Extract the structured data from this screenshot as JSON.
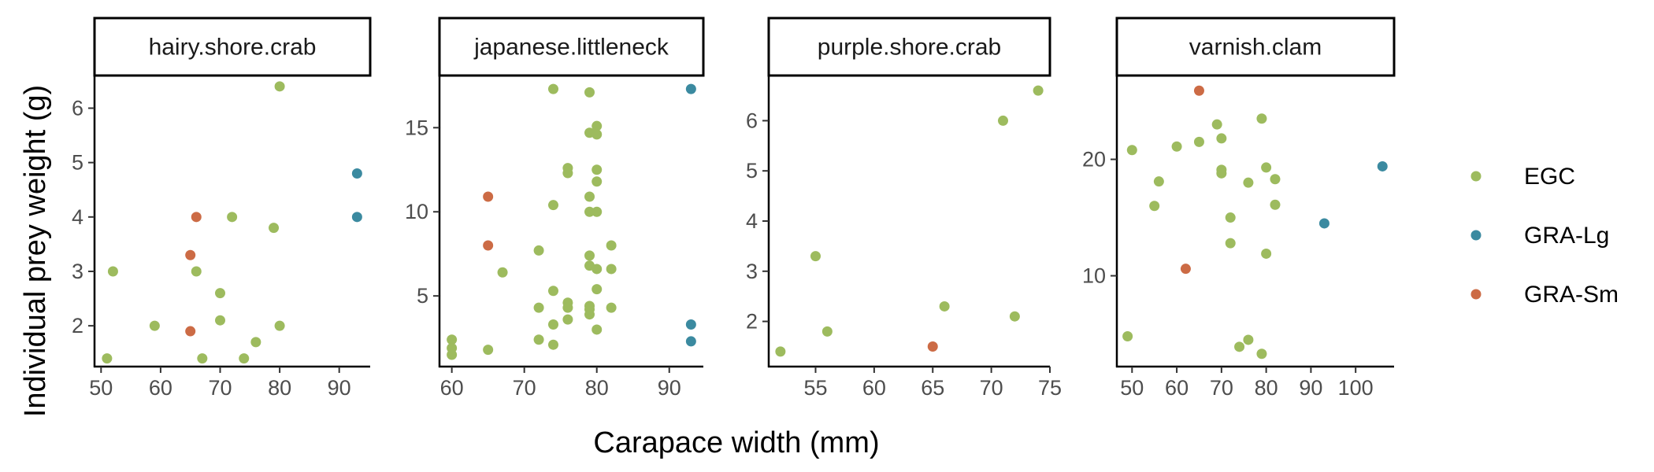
{
  "chart_data": {
    "type": "scatter",
    "xlabel": "Carapace width (mm)",
    "ylabel": "Individual prey weight (g)",
    "legend": {
      "position": "right",
      "items": [
        {
          "name": "EGC",
          "color": "#9dbb5e"
        },
        {
          "name": "GRA-Lg",
          "color": "#3b8aa0"
        },
        {
          "name": "GRA-Sm",
          "color": "#cc6b45"
        }
      ]
    },
    "panels": [
      {
        "title": "hairy.shore.crab",
        "xlim": [
          48.9,
          95.2
        ],
        "ylim": [
          1.25,
          6.6
        ],
        "xticks": [
          50,
          60,
          70,
          80,
          90
        ],
        "yticks": [
          2,
          3,
          4,
          5,
          6
        ],
        "points": [
          {
            "x": 51,
            "y": 1.4,
            "group": "EGC"
          },
          {
            "x": 52,
            "y": 3.0,
            "group": "EGC"
          },
          {
            "x": 59,
            "y": 2.0,
            "group": "EGC"
          },
          {
            "x": 66,
            "y": 3.0,
            "group": "EGC"
          },
          {
            "x": 67,
            "y": 1.4,
            "group": "EGC"
          },
          {
            "x": 70,
            "y": 2.6,
            "group": "EGC"
          },
          {
            "x": 70,
            "y": 2.1,
            "group": "EGC"
          },
          {
            "x": 72,
            "y": 4.0,
            "group": "EGC"
          },
          {
            "x": 74,
            "y": 1.4,
            "group": "EGC"
          },
          {
            "x": 76,
            "y": 1.7,
            "group": "EGC"
          },
          {
            "x": 79,
            "y": 3.8,
            "group": "EGC"
          },
          {
            "x": 80,
            "y": 6.4,
            "group": "EGC"
          },
          {
            "x": 80,
            "y": 2.0,
            "group": "EGC"
          },
          {
            "x": 93,
            "y": 4.8,
            "group": "GRA-Lg"
          },
          {
            "x": 93,
            "y": 4.0,
            "group": "GRA-Lg"
          },
          {
            "x": 65,
            "y": 3.3,
            "group": "GRA-Sm"
          },
          {
            "x": 65,
            "y": 1.9,
            "group": "GRA-Sm"
          },
          {
            "x": 66,
            "y": 4.0,
            "group": "GRA-Sm"
          }
        ]
      },
      {
        "title": "japanese.littleneck",
        "xlim": [
          58.3,
          94.7
        ],
        "ylim": [
          0.8,
          18.1
        ],
        "xticks": [
          60,
          70,
          80,
          90
        ],
        "yticks": [
          5,
          10,
          15
        ],
        "points": [
          {
            "x": 60,
            "y": 2.4,
            "group": "EGC"
          },
          {
            "x": 60,
            "y": 1.9,
            "group": "EGC"
          },
          {
            "x": 60,
            "y": 1.5,
            "group": "EGC"
          },
          {
            "x": 65,
            "y": 1.8,
            "group": "EGC"
          },
          {
            "x": 67,
            "y": 6.4,
            "group": "EGC"
          },
          {
            "x": 72,
            "y": 7.7,
            "group": "EGC"
          },
          {
            "x": 72,
            "y": 4.3,
            "group": "EGC"
          },
          {
            "x": 72,
            "y": 2.4,
            "group": "EGC"
          },
          {
            "x": 74,
            "y": 17.3,
            "group": "EGC"
          },
          {
            "x": 74,
            "y": 10.4,
            "group": "EGC"
          },
          {
            "x": 74,
            "y": 5.3,
            "group": "EGC"
          },
          {
            "x": 74,
            "y": 3.3,
            "group": "EGC"
          },
          {
            "x": 74,
            "y": 2.1,
            "group": "EGC"
          },
          {
            "x": 76,
            "y": 12.6,
            "group": "EGC"
          },
          {
            "x": 76,
            "y": 12.3,
            "group": "EGC"
          },
          {
            "x": 76,
            "y": 4.6,
            "group": "EGC"
          },
          {
            "x": 76,
            "y": 4.3,
            "group": "EGC"
          },
          {
            "x": 76,
            "y": 3.6,
            "group": "EGC"
          },
          {
            "x": 79,
            "y": 17.1,
            "group": "EGC"
          },
          {
            "x": 79,
            "y": 14.7,
            "group": "EGC"
          },
          {
            "x": 79,
            "y": 10.9,
            "group": "EGC"
          },
          {
            "x": 79,
            "y": 10.0,
            "group": "EGC"
          },
          {
            "x": 79,
            "y": 7.4,
            "group": "EGC"
          },
          {
            "x": 79,
            "y": 6.8,
            "group": "EGC"
          },
          {
            "x": 79,
            "y": 4.4,
            "group": "EGC"
          },
          {
            "x": 79,
            "y": 4.2,
            "group": "EGC"
          },
          {
            "x": 79,
            "y": 3.9,
            "group": "EGC"
          },
          {
            "x": 80,
            "y": 15.1,
            "group": "EGC"
          },
          {
            "x": 80,
            "y": 14.6,
            "group": "EGC"
          },
          {
            "x": 80,
            "y": 12.5,
            "group": "EGC"
          },
          {
            "x": 80,
            "y": 11.8,
            "group": "EGC"
          },
          {
            "x": 80,
            "y": 10.0,
            "group": "EGC"
          },
          {
            "x": 80,
            "y": 6.6,
            "group": "EGC"
          },
          {
            "x": 80,
            "y": 5.4,
            "group": "EGC"
          },
          {
            "x": 80,
            "y": 3.0,
            "group": "EGC"
          },
          {
            "x": 82,
            "y": 8.0,
            "group": "EGC"
          },
          {
            "x": 82,
            "y": 6.6,
            "group": "EGC"
          },
          {
            "x": 82,
            "y": 4.3,
            "group": "EGC"
          },
          {
            "x": 93,
            "y": 17.3,
            "group": "GRA-Lg"
          },
          {
            "x": 93,
            "y": 3.3,
            "group": "GRA-Lg"
          },
          {
            "x": 93,
            "y": 2.3,
            "group": "GRA-Lg"
          },
          {
            "x": 65,
            "y": 10.9,
            "group": "GRA-Sm"
          },
          {
            "x": 65,
            "y": 8.0,
            "group": "GRA-Sm"
          }
        ]
      },
      {
        "title": "purple.shore.crab",
        "xlim": [
          51.0,
          75.0
        ],
        "ylim": [
          1.1,
          6.9
        ],
        "xticks": [
          55,
          60,
          65,
          70,
          75
        ],
        "yticks": [
          2,
          3,
          4,
          5,
          6
        ],
        "points": [
          {
            "x": 52,
            "y": 1.4,
            "group": "EGC"
          },
          {
            "x": 55,
            "y": 3.3,
            "group": "EGC"
          },
          {
            "x": 56,
            "y": 1.8,
            "group": "EGC"
          },
          {
            "x": 66,
            "y": 2.3,
            "group": "EGC"
          },
          {
            "x": 71,
            "y": 6.0,
            "group": "EGC"
          },
          {
            "x": 72,
            "y": 2.1,
            "group": "EGC"
          },
          {
            "x": 74,
            "y": 6.6,
            "group": "EGC"
          },
          {
            "x": 65,
            "y": 1.5,
            "group": "GRA-Sm"
          }
        ]
      },
      {
        "title": "varnish.clam",
        "xlim": [
          46.6,
          108.6
        ],
        "ylim": [
          2.2,
          27.2
        ],
        "xticks": [
          50,
          60,
          70,
          80,
          90,
          100
        ],
        "yticks": [
          10,
          20
        ],
        "points": [
          {
            "x": 49,
            "y": 4.8,
            "group": "EGC"
          },
          {
            "x": 50,
            "y": 20.8,
            "group": "EGC"
          },
          {
            "x": 55,
            "y": 16.0,
            "group": "EGC"
          },
          {
            "x": 56,
            "y": 18.1,
            "group": "EGC"
          },
          {
            "x": 60,
            "y": 21.1,
            "group": "EGC"
          },
          {
            "x": 65,
            "y": 21.5,
            "group": "EGC"
          },
          {
            "x": 69,
            "y": 23.0,
            "group": "EGC"
          },
          {
            "x": 70,
            "y": 21.8,
            "group": "EGC"
          },
          {
            "x": 70,
            "y": 19.1,
            "group": "EGC"
          },
          {
            "x": 70,
            "y": 18.8,
            "group": "EGC"
          },
          {
            "x": 72,
            "y": 15.0,
            "group": "EGC"
          },
          {
            "x": 72,
            "y": 12.8,
            "group": "EGC"
          },
          {
            "x": 74,
            "y": 3.9,
            "group": "EGC"
          },
          {
            "x": 76,
            "y": 18.0,
            "group": "EGC"
          },
          {
            "x": 76,
            "y": 4.5,
            "group": "EGC"
          },
          {
            "x": 79,
            "y": 23.5,
            "group": "EGC"
          },
          {
            "x": 79,
            "y": 3.3,
            "group": "EGC"
          },
          {
            "x": 80,
            "y": 19.3,
            "group": "EGC"
          },
          {
            "x": 80,
            "y": 11.9,
            "group": "EGC"
          },
          {
            "x": 82,
            "y": 18.3,
            "group": "EGC"
          },
          {
            "x": 82,
            "y": 16.1,
            "group": "EGC"
          },
          {
            "x": 93,
            "y": 14.5,
            "group": "GRA-Lg"
          },
          {
            "x": 106,
            "y": 19.4,
            "group": "GRA-Lg"
          },
          {
            "x": 65,
            "y": 25.9,
            "group": "GRA-Sm"
          },
          {
            "x": 62,
            "y": 10.6,
            "group": "GRA-Sm"
          }
        ]
      }
    ]
  }
}
